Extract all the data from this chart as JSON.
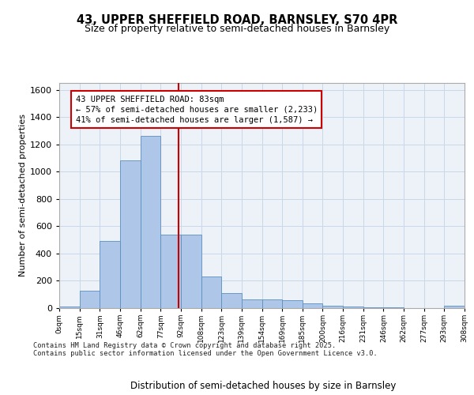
{
  "title_line1": "43, UPPER SHEFFIELD ROAD, BARNSLEY, S70 4PR",
  "title_line2": "Size of property relative to semi-detached houses in Barnsley",
  "xlabel": "Distribution of semi-detached houses by size in Barnsley",
  "ylabel": "Number of semi-detached properties",
  "bin_labels": [
    "0sqm",
    "15sqm",
    "31sqm",
    "46sqm",
    "62sqm",
    "77sqm",
    "92sqm",
    "108sqm",
    "123sqm",
    "139sqm",
    "154sqm",
    "169sqm",
    "185sqm",
    "200sqm",
    "216sqm",
    "231sqm",
    "246sqm",
    "262sqm",
    "277sqm",
    "293sqm",
    "308sqm"
  ],
  "values": [
    10,
    130,
    490,
    1080,
    1260,
    540,
    540,
    230,
    110,
    65,
    65,
    60,
    35,
    20,
    13,
    5,
    5,
    2,
    0,
    15
  ],
  "bar_color": "#aec6e8",
  "bar_edge_color": "#5a8fc0",
  "vline_color": "#cc0000",
  "vline_x": 5.4,
  "annotation_text": "43 UPPER SHEFFIELD ROAD: 83sqm\n← 57% of semi-detached houses are smaller (2,233)\n41% of semi-detached houses are larger (1,587) →",
  "ylim": [
    0,
    1650
  ],
  "yticks": [
    0,
    200,
    400,
    600,
    800,
    1000,
    1200,
    1400,
    1600
  ],
  "grid_color": "#c8d8e8",
  "plot_bg": "#edf2f8",
  "footer": "Contains HM Land Registry data © Crown copyright and database right 2025.\nContains public sector information licensed under the Open Government Licence v3.0."
}
